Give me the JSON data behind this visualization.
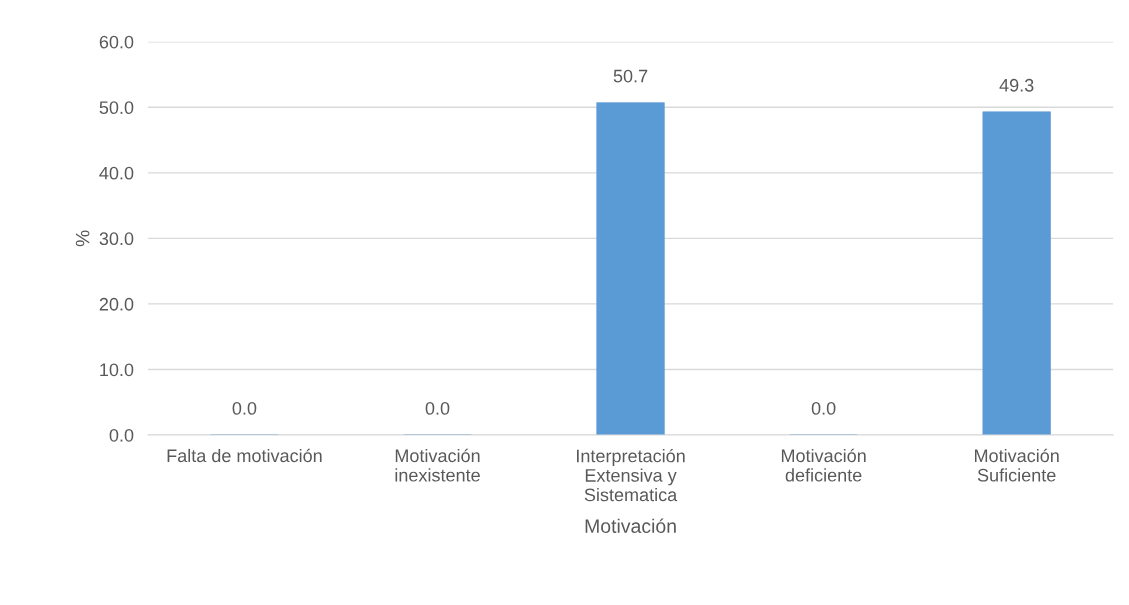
{
  "chart_data": {
    "type": "bar",
    "xlabel": "Motivación",
    "ylabel": "%",
    "categories": [
      "Falta de motivación",
      "Motivación\ninexistente",
      "Interpretación\nExtensiva y\nSistematica",
      "Motivación\ndeficiente",
      "Motivación\nSuficiente"
    ],
    "values": [
      0,
      0,
      50.7,
      0,
      49.3
    ],
    "value_labels": [
      "0.0",
      "0.0",
      "50.7",
      "0.0",
      "49.3"
    ],
    "color": "#5b9bd5",
    "ylim": [
      0,
      60
    ],
    "yticks": [
      {
        "value": 0,
        "label": "0.0"
      },
      {
        "value": 10,
        "label": "10.0"
      },
      {
        "value": 20,
        "label": "20.0"
      },
      {
        "value": 30,
        "label": "30.0"
      },
      {
        "value": 40,
        "label": "40.0"
      },
      {
        "value": 50,
        "label": "50.0"
      },
      {
        "value": 60,
        "label": "60.0"
      }
    ],
    "grid": "y"
  }
}
